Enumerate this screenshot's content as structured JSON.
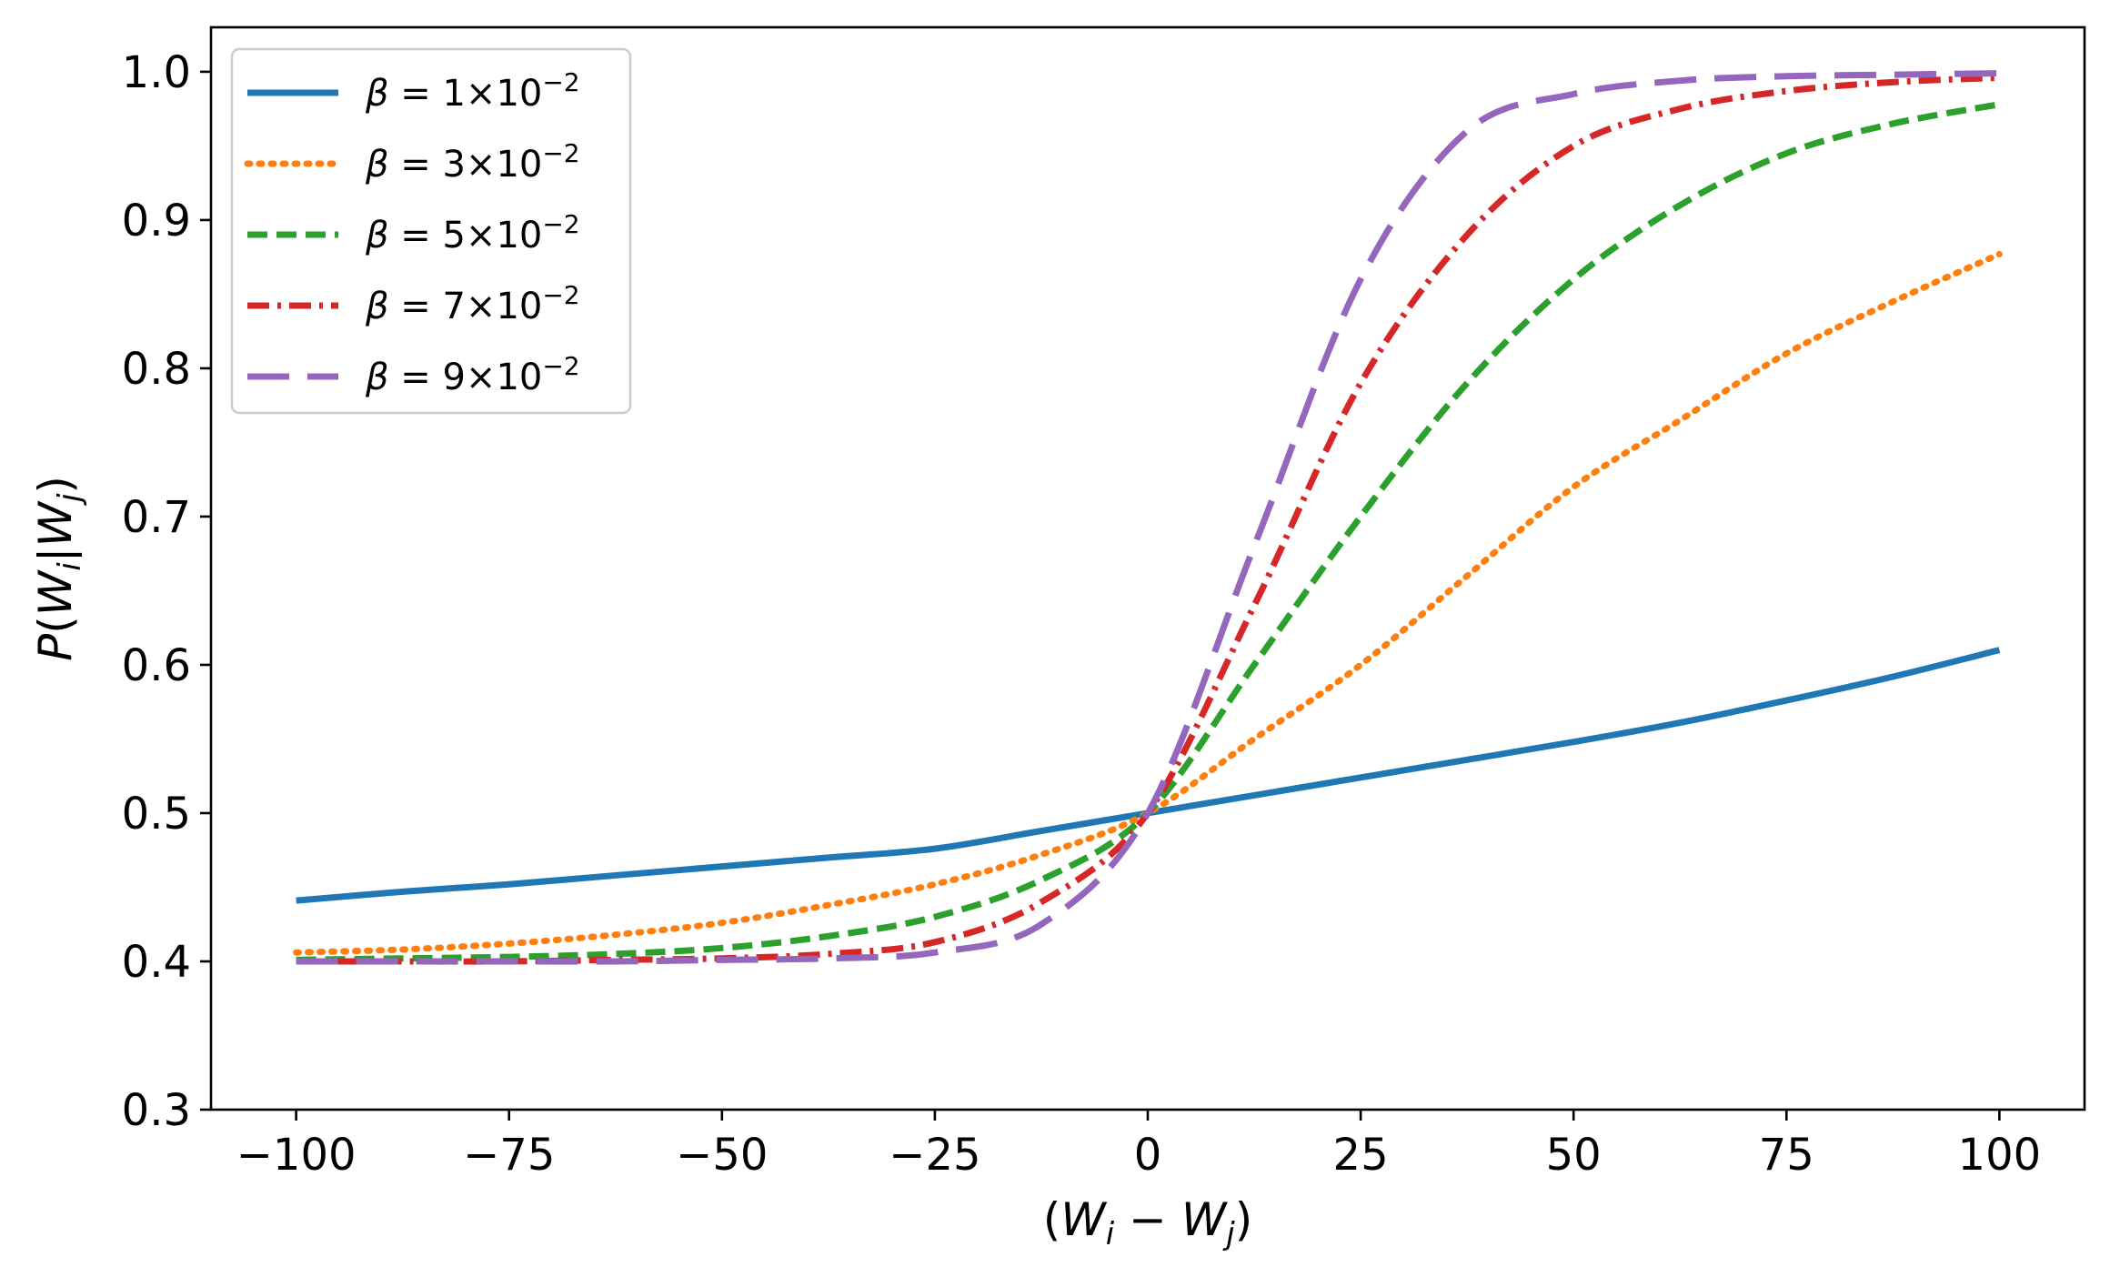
{
  "chart_data": {
    "type": "line",
    "title": "",
    "xlabel": "(W_i − W_j)",
    "ylabel": "P(W_i|W_j)",
    "xlim": [
      -110,
      110
    ],
    "ylim": [
      0.3,
      1.03
    ],
    "xticks": [
      -100,
      -75,
      -50,
      -25,
      0,
      25,
      50,
      75,
      100
    ],
    "xtick_labels": [
      "−100",
      "−75",
      "−50",
      "−25",
      "0",
      "25",
      "50",
      "75",
      "100"
    ],
    "yticks": [
      0.3,
      0.4,
      0.5,
      0.6,
      0.7,
      0.8,
      0.9,
      1.0
    ],
    "ytick_labels": [
      "0.3",
      "0.4",
      "0.5",
      "0.6",
      "0.7",
      "0.8",
      "0.9",
      "1.0"
    ],
    "grid": false,
    "legend_position": "top-left",
    "x": [
      -100,
      -87.5,
      -75,
      -62.5,
      -50,
      -37.5,
      -25,
      -12.5,
      0,
      12.5,
      25,
      37.5,
      50,
      62.5,
      75,
      87.5,
      100
    ],
    "series": [
      {
        "name": "β = 1×10⁻²",
        "beta": "1",
        "style": "solid",
        "color": "#1f77b4",
        "values": [
          0.441,
          0.447,
          0.452,
          0.458,
          0.464,
          0.47,
          0.476,
          0.488,
          0.5,
          0.512,
          0.524,
          0.536,
          0.548,
          0.561,
          0.576,
          0.592,
          0.61
        ]
      },
      {
        "name": "β = 3×10⁻²",
        "beta": "3",
        "style": "dotted",
        "color": "#ff7f0e",
        "values": [
          0.406,
          0.408,
          0.412,
          0.418,
          0.426,
          0.438,
          0.452,
          0.472,
          0.5,
          0.55,
          0.6,
          0.66,
          0.72,
          0.765,
          0.81,
          0.845,
          0.877
        ]
      },
      {
        "name": "β = 5×10⁻²",
        "beta": "5",
        "style": "dashed",
        "color": "#2ca02c",
        "values": [
          0.401,
          0.402,
          0.403,
          0.405,
          0.409,
          0.417,
          0.43,
          0.455,
          0.5,
          0.6,
          0.7,
          0.79,
          0.86,
          0.91,
          0.945,
          0.965,
          0.978
        ]
      },
      {
        "name": "β = 7×10⁻²",
        "beta": "7",
        "style": "dashdot",
        "color": "#d62728",
        "values": [
          0.4,
          0.4,
          0.4,
          0.401,
          0.402,
          0.405,
          0.413,
          0.44,
          0.5,
          0.64,
          0.79,
          0.89,
          0.95,
          0.975,
          0.987,
          0.993,
          0.996
        ]
      },
      {
        "name": "β = 9×10⁻²",
        "beta": "9",
        "style": "longdash",
        "color": "#9467bd",
        "values": [
          0.4,
          0.4,
          0.4,
          0.4,
          0.401,
          0.402,
          0.406,
          0.425,
          0.5,
          0.68,
          0.86,
          0.96,
          0.985,
          0.994,
          0.997,
          0.998,
          0.999
        ]
      }
    ]
  }
}
